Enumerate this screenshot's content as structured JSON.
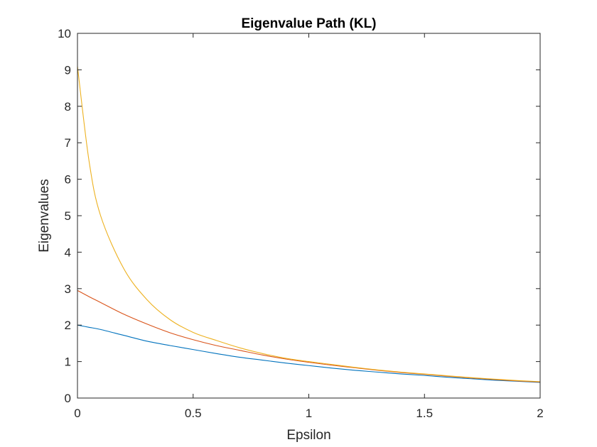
{
  "chart_data": {
    "type": "line",
    "title": "Eigenvalue Path (KL)",
    "xlabel": "Epsilon",
    "ylabel": "Eigenvalues",
    "xlim": [
      0,
      2
    ],
    "ylim": [
      0,
      10
    ],
    "xticks": [
      0,
      0.5,
      1,
      1.5,
      2
    ],
    "xtick_labels": [
      "0",
      "0.5",
      "1",
      "1.5",
      "2"
    ],
    "yticks": [
      0,
      1,
      2,
      3,
      4,
      5,
      6,
      7,
      8,
      9,
      10
    ],
    "ytick_labels": [
      "0",
      "1",
      "2",
      "3",
      "4",
      "5",
      "6",
      "7",
      "8",
      "9",
      "10"
    ],
    "grid": false,
    "legend": "none",
    "x": [
      0,
      0.05,
      0.1,
      0.2,
      0.3,
      0.4,
      0.5,
      0.6,
      0.7,
      0.8,
      0.9,
      1.0,
      1.1,
      1.2,
      1.3,
      1.4,
      1.5,
      1.6,
      1.7,
      1.8,
      1.9,
      2.0
    ],
    "series": [
      {
        "color": "#0072BD",
        "values": [
          2.0,
          1.94,
          1.88,
          1.72,
          1.56,
          1.44,
          1.33,
          1.22,
          1.12,
          1.04,
          0.96,
          0.89,
          0.82,
          0.76,
          0.71,
          0.66,
          0.62,
          0.57,
          0.53,
          0.49,
          0.46,
          0.43
        ]
      },
      {
        "color": "#D95319",
        "values": [
          2.95,
          2.78,
          2.62,
          2.3,
          2.03,
          1.79,
          1.6,
          1.44,
          1.31,
          1.18,
          1.07,
          0.98,
          0.9,
          0.83,
          0.76,
          0.7,
          0.65,
          0.6,
          0.55,
          0.51,
          0.47,
          0.44
        ]
      },
      {
        "color": "#EDB120",
        "values": [
          9.1,
          6.5,
          5.0,
          3.55,
          2.7,
          2.15,
          1.8,
          1.58,
          1.38,
          1.22,
          1.09,
          1.0,
          0.92,
          0.84,
          0.77,
          0.71,
          0.66,
          0.61,
          0.56,
          0.52,
          0.48,
          0.45
        ]
      }
    ]
  }
}
